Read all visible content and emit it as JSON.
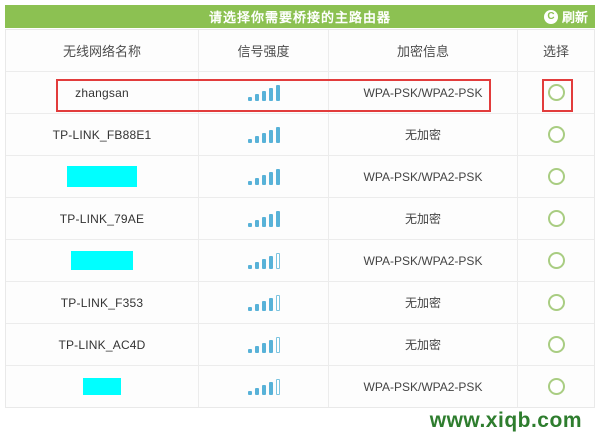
{
  "titlebar": {
    "title": "请选择你需要桥接的主路由器",
    "refresh_label": "刷新",
    "refresh_icon_glyph": "C",
    "bg_color": "#8cc152"
  },
  "table": {
    "columns": [
      "无线网络名称",
      "信号强度",
      "加密信息",
      "选择"
    ],
    "signal_max_bars": 5,
    "rows": [
      {
        "name": "zhangsan",
        "censored": false,
        "censor_width": 0,
        "censor_height": 0,
        "signal_bars": 5,
        "encryption": "WPA-PSK/WPA2-PSK",
        "radio_selected": false,
        "highlighted": true
      },
      {
        "name": "TP-LINK_FB88E1",
        "censored": false,
        "censor_width": 0,
        "censor_height": 0,
        "signal_bars": 5,
        "encryption": "无加密",
        "radio_selected": false,
        "highlighted": false
      },
      {
        "name": "",
        "censored": true,
        "censor_width": 70,
        "censor_height": 21,
        "signal_bars": 5,
        "encryption": "WPA-PSK/WPA2-PSK",
        "radio_selected": false,
        "highlighted": false
      },
      {
        "name": "TP-LINK_79AE",
        "censored": false,
        "censor_width": 0,
        "censor_height": 0,
        "signal_bars": 5,
        "encryption": "无加密",
        "radio_selected": false,
        "highlighted": false
      },
      {
        "name": "",
        "censored": true,
        "censor_width": 62,
        "censor_height": 19,
        "signal_bars": 4,
        "encryption": "WPA-PSK/WPA2-PSK",
        "radio_selected": false,
        "highlighted": false
      },
      {
        "name": "TP-LINK_F353",
        "censored": false,
        "censor_width": 0,
        "censor_height": 0,
        "signal_bars": 4,
        "encryption": "无加密",
        "radio_selected": false,
        "highlighted": false
      },
      {
        "name": "TP-LINK_AC4D",
        "censored": false,
        "censor_width": 0,
        "censor_height": 0,
        "signal_bars": 4,
        "encryption": "无加密",
        "radio_selected": false,
        "highlighted": false
      },
      {
        "name": "",
        "censored": true,
        "censor_width": 38,
        "censor_height": 17,
        "signal_bars": 4,
        "encryption": "WPA-PSK/WPA2-PSK",
        "radio_selected": false,
        "highlighted": false
      }
    ]
  },
  "watermark": {
    "text": "www.xiqb.com"
  },
  "colors": {
    "header_green": "#8cc152",
    "signal_bar_blue": "#58b2d8",
    "radio_border_green": "#a9cd82",
    "highlight_red": "#e23c3c",
    "censor_cyan": "#00ffff",
    "watermark_green": "#2e7d2e",
    "table_border": "#ececec"
  }
}
